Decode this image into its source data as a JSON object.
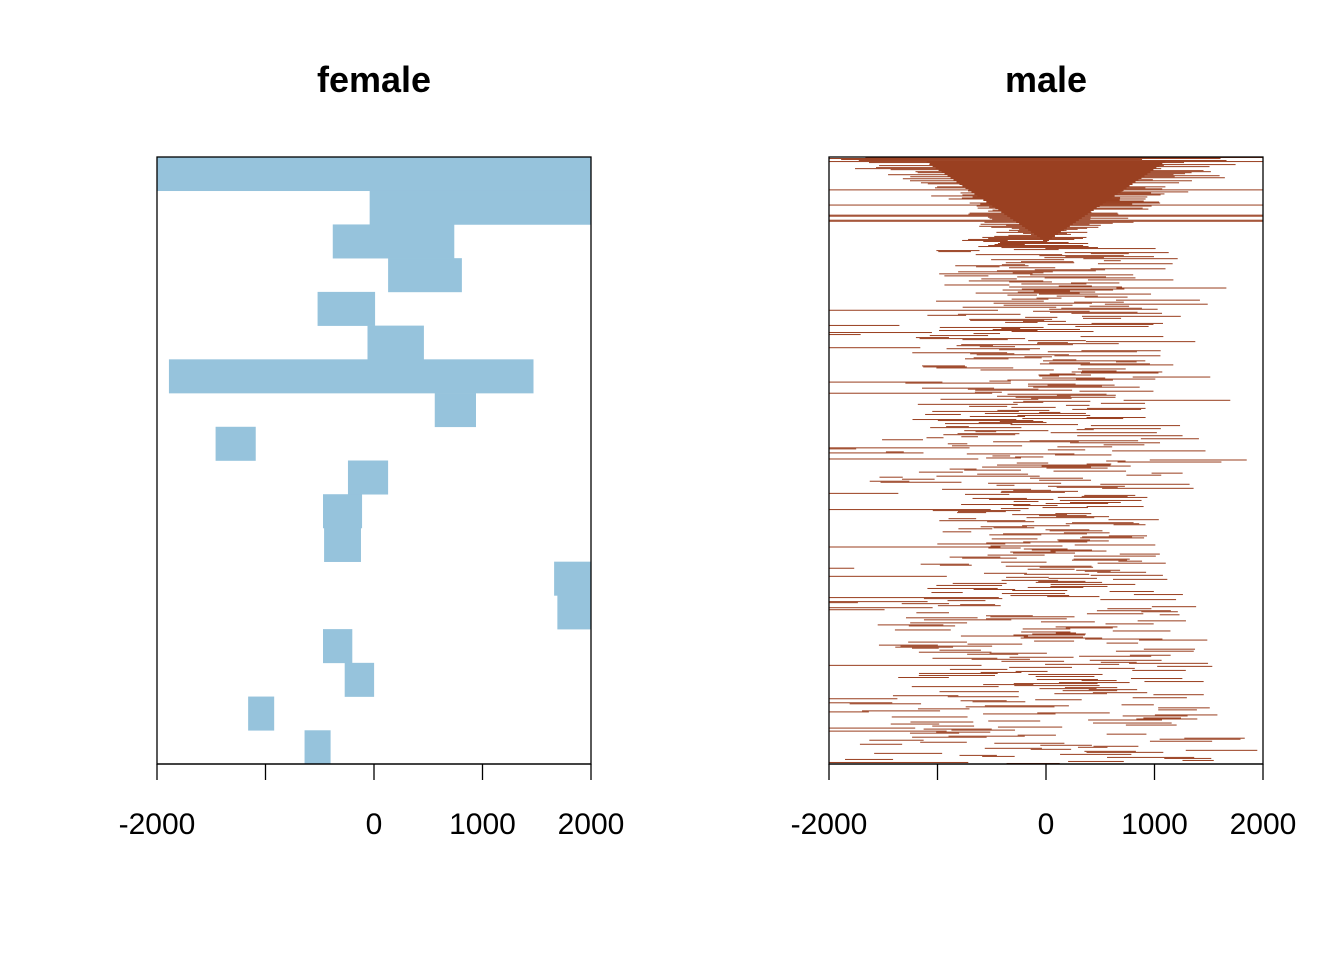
{
  "colors": {
    "female": "#96C3DC",
    "male": "#9A4021",
    "axis": "#000000",
    "background": "#FFFFFF"
  },
  "chart_data": [
    {
      "type": "bar",
      "title": "female",
      "xlabel": "",
      "ylabel": "",
      "xlim": [
        -2000,
        2000
      ],
      "x_ticks": [
        -2000,
        -1000,
        0,
        1000,
        2000
      ],
      "x_tick_labels": [
        "-2000",
        "",
        "0",
        "1000",
        "2000"
      ],
      "grid": false,
      "legend": "none",
      "row_count": 18,
      "segments": [
        {
          "row": 0,
          "start": -2000,
          "end": 2000
        },
        {
          "row": 1,
          "start": -40,
          "end": 2000
        },
        {
          "row": 2,
          "start": -380,
          "end": 740
        },
        {
          "row": 3,
          "start": 130,
          "end": 810
        },
        {
          "row": 4,
          "start": -520,
          "end": 10
        },
        {
          "row": 5,
          "start": -60,
          "end": 460
        },
        {
          "row": 6,
          "start": -1890,
          "end": 1470
        },
        {
          "row": 7,
          "start": 560,
          "end": 940
        },
        {
          "row": 8,
          "start": -1460,
          "end": -1090
        },
        {
          "row": 9,
          "start": -240,
          "end": 130
        },
        {
          "row": 10,
          "start": -470,
          "end": -110
        },
        {
          "row": 11,
          "start": -460,
          "end": -120
        },
        {
          "row": 12,
          "start": 1660,
          "end": 2000
        },
        {
          "row": 13,
          "start": 1690,
          "end": 2000
        },
        {
          "row": 14,
          "start": -470,
          "end": -200
        },
        {
          "row": 15,
          "start": -270,
          "end": 1
        },
        {
          "row": 16,
          "start": -1160,
          "end": -920
        },
        {
          "row": 17,
          "start": -640,
          "end": -400
        }
      ]
    },
    {
      "type": "bar",
      "title": "male",
      "xlabel": "",
      "ylabel": "",
      "xlim": [
        -2000,
        2000
      ],
      "x_ticks": [
        -2000,
        -1000,
        0,
        1000,
        2000
      ],
      "x_tick_labels": [
        "-2000",
        "",
        "0",
        "1000",
        "2000"
      ],
      "grid": false,
      "legend": "none",
      "row_count": 600,
      "segments_note": "many thin horizontal segments; dense near top, narrowing toward center then widening at bottom"
    }
  ]
}
